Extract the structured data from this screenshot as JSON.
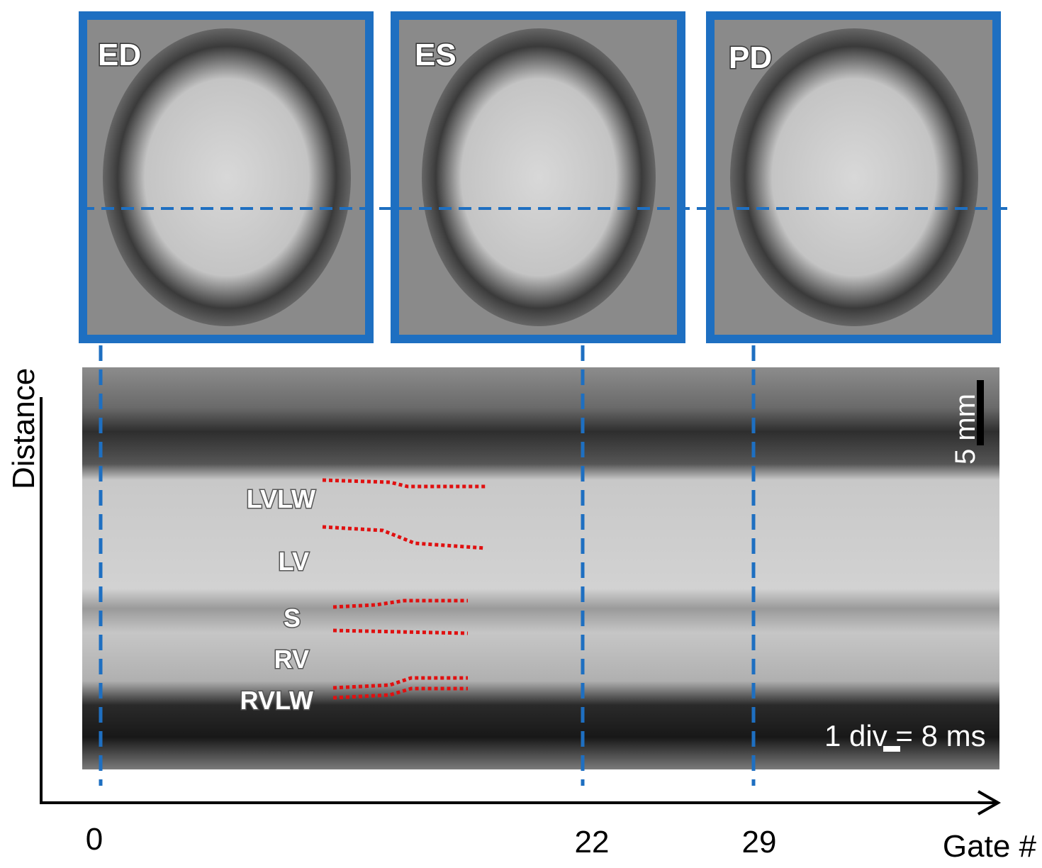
{
  "panels": [
    {
      "label": "ED"
    },
    {
      "label": "ES"
    },
    {
      "label": "PD"
    }
  ],
  "mmode": {
    "labels": [
      "LVLW",
      "LV",
      "S",
      "RV",
      "RVLW"
    ],
    "scale_bar": "5 mm",
    "time_scale": "1 div = 8 ms"
  },
  "axes": {
    "y_label": "Distance",
    "x_label": "Gate #",
    "x_ticks": [
      0,
      22,
      29
    ]
  }
}
